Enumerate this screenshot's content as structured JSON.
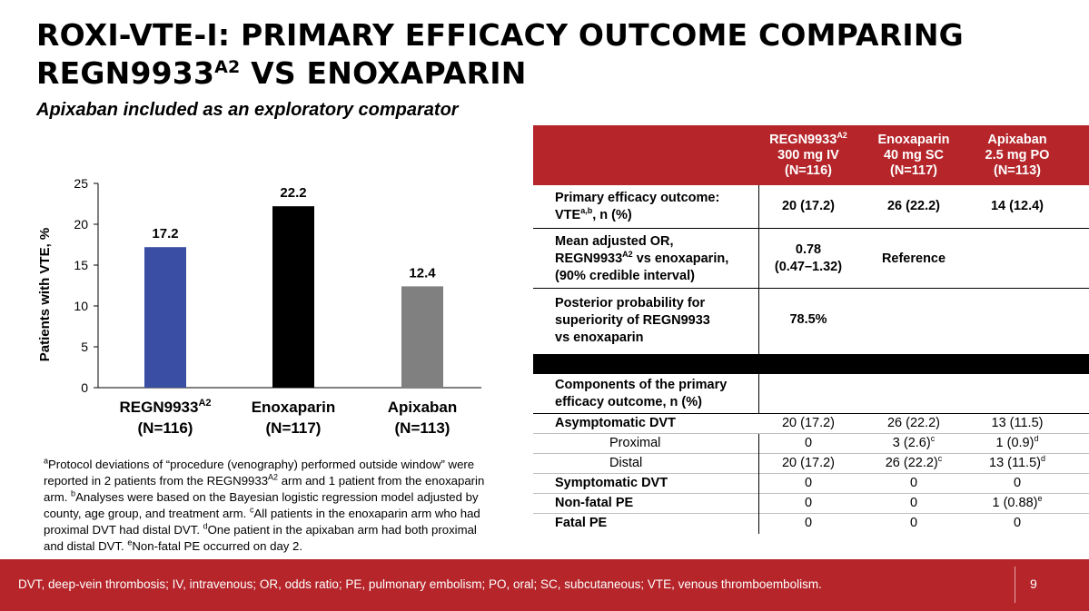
{
  "title": {
    "line1": "ROXI-VTE-I: PRIMARY EFFICACY OUTCOME COMPARING",
    "line2_pre": "REGN9933",
    "line2_sup": "A2",
    "line2_post": " VS ENOXAPARIN"
  },
  "subtitle": "Apixaban included as an exploratory comparator",
  "chart_data": {
    "type": "bar",
    "ylabel": "Patients with VTE, %",
    "ylim": [
      0,
      25
    ],
    "yticks": [
      "0",
      "5",
      "10",
      "15",
      "20",
      "25"
    ],
    "categories": [
      {
        "name": "REGN9933",
        "sup": "A2",
        "n": "(N=116)"
      },
      {
        "name": "Enoxaparin",
        "sup": "",
        "n": "(N=117)"
      },
      {
        "name": "Apixaban",
        "sup": "",
        "n": "(N=113)"
      }
    ],
    "values": [
      17.2,
      22.2,
      12.4
    ],
    "value_labels": [
      "17.2",
      "22.2",
      "12.4"
    ],
    "colors": [
      "#3a4fa3",
      "#000000",
      "#808080"
    ]
  },
  "footnotes": {
    "a_sup": "a",
    "a1": "Protocol deviations of “procedure (venography) performed outside window” were reported in 2 patients from the REGN9933",
    "a_sup2": "A2",
    "a2": " arm and 1 patient from the enoxaparin arm. ",
    "b_sup": "b",
    "b": "Analyses were based on the Bayesian logistic regression model adjusted by county, age group, and treatment arm. ",
    "c_sup": "c",
    "c": "All patients in the enoxaparin arm who had proximal DVT had distal DVT. ",
    "d_sup": "d",
    "d": "One patient in the apixaban arm had both proximal and distal DVT. ",
    "e_sup": "e",
    "e": "Non-fatal PE occurred on day 2."
  },
  "table": {
    "headers": [
      {
        "l1": "REGN9933",
        "l1_sup": "A2",
        "l2": "300 mg IV",
        "l3": "(N=116)"
      },
      {
        "l1": "Enoxaparin",
        "l1_sup": "",
        "l2": "40 mg SC",
        "l3": "(N=117)"
      },
      {
        "l1": "Apixaban",
        "l1_sup": "",
        "l2": "2.5 mg PO",
        "l3": "(N=113)"
      }
    ],
    "primary": {
      "label1": "Primary efficacy outcome:",
      "label2_pre": "VTE",
      "label2_sup": "a,b",
      "label2_post": ", n (%)",
      "v": [
        "20 (17.2)",
        "26 (22.2)",
        "14 (12.4)"
      ]
    },
    "or": {
      "label1": "Mean adjusted OR,",
      "label2_pre": "REGN9933",
      "label2_sup": "A2",
      "label2_post": " vs enoxaparin,",
      "label3": "(90% credible interval)",
      "v1a": "0.78",
      "v1b": "(0.47–1.32)",
      "v2": "Reference"
    },
    "posterior": {
      "label1": "Posterior probability for",
      "label2": "superiority of REGN9933",
      "label3": "vs enoxaparin",
      "v1": "78.5%"
    },
    "components": {
      "label1": "Components of the primary",
      "label2": "efficacy outcome, n (%)"
    },
    "asym": {
      "label": "Asymptomatic DVT",
      "v": [
        "20 (17.2)",
        "26 (22.2)",
        "13 (11.5)"
      ]
    },
    "proximal": {
      "label": "Proximal",
      "v1": "0",
      "v2": "3 (2.6)",
      "v2_sup": "c",
      "v3": "1 (0.9)",
      "v3_sup": "d"
    },
    "distal": {
      "label": "Distal",
      "v1": "20 (17.2)",
      "v2": "26 (22.2)",
      "v2_sup": "c",
      "v3": "13 (11.5)",
      "v3_sup": "d"
    },
    "sym": {
      "label": "Symptomatic DVT",
      "v": [
        "0",
        "0",
        "0"
      ]
    },
    "nfpe": {
      "label": "Non-fatal PE",
      "v1": "0",
      "v2": "0",
      "v3": "1 (0.88)",
      "v3_sup": "e"
    },
    "fpe": {
      "label": "Fatal PE",
      "v": [
        "0",
        "0",
        "0"
      ]
    }
  },
  "footer": {
    "abbreviations": "DVT, deep-vein thrombosis; IV, intravenous; OR, odds ratio; PE, pulmonary embolism; PO, oral; SC, subcutaneous; VTE, venous thromboembolism.",
    "page": "9"
  },
  "colors": {
    "accent": "#b5252a"
  }
}
